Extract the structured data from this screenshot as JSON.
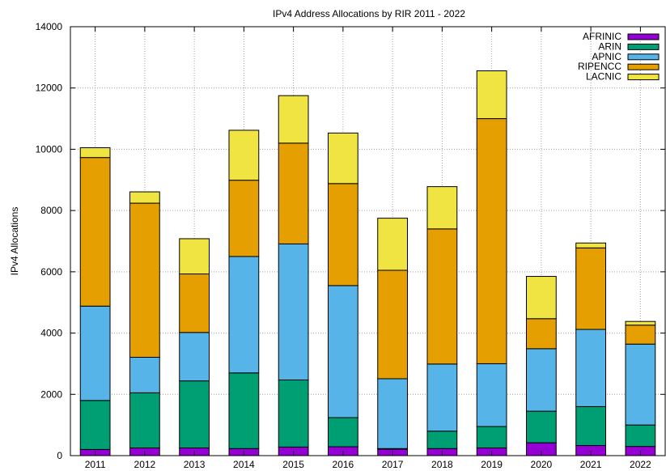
{
  "chart_data": {
    "type": "bar",
    "stacked": true,
    "title": "IPv4 Address Allocations by RIR 2011 - 2022",
    "ylabel": "IPv4 Allocations",
    "xlabel": "",
    "ylim": [
      0,
      14000
    ],
    "yticks": [
      "0",
      "2000",
      "4000",
      "6000",
      "8000",
      "10000",
      "12000",
      "14000"
    ],
    "grid": true,
    "legend_position": "top-right",
    "categories": [
      "2011",
      "2012",
      "2013",
      "2014",
      "2015",
      "2016",
      "2017",
      "2018",
      "2019",
      "2020",
      "2021",
      "2022"
    ],
    "series": [
      {
        "name": "AFRINIC",
        "color": "#9400d3",
        "values": [
          200,
          250,
          250,
          230,
          280,
          290,
          210,
          230,
          250,
          420,
          330,
          300
        ]
      },
      {
        "name": "ARIN",
        "color": "#009e73",
        "values": [
          1600,
          1800,
          2190,
          2470,
          2190,
          950,
          20,
          570,
          700,
          1030,
          1270,
          700
        ]
      },
      {
        "name": "APNIC",
        "color": "#56b4e9",
        "values": [
          3080,
          1160,
          1580,
          3800,
          4440,
          4310,
          2280,
          2190,
          2050,
          2040,
          2520,
          2640
        ]
      },
      {
        "name": "RIPENCC",
        "color": "#e69f00",
        "values": [
          4850,
          5030,
          1910,
          2490,
          3290,
          3330,
          3540,
          4410,
          8000,
          980,
          2660,
          620
        ]
      },
      {
        "name": "LACNIC",
        "color": "#f0e442",
        "values": [
          320,
          370,
          1150,
          1630,
          1550,
          1650,
          1700,
          1380,
          1560,
          1380,
          160,
          120
        ]
      }
    ]
  }
}
